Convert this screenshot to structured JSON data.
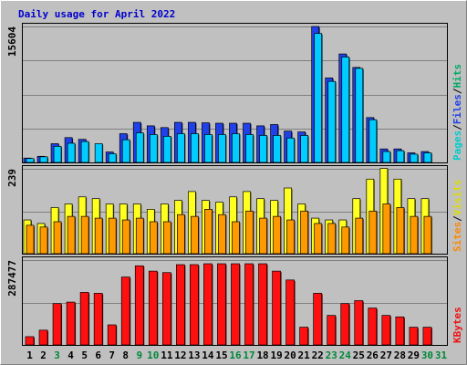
{
  "chart_data": {
    "type": "bar",
    "title": "Daily usage for April 2022",
    "categories": [
      "1",
      "2",
      "3",
      "4",
      "5",
      "6",
      "7",
      "8",
      "9",
      "10",
      "11",
      "12",
      "13",
      "14",
      "15",
      "16",
      "17",
      "18",
      "19",
      "20",
      "21",
      "22",
      "23",
      "24",
      "25",
      "26",
      "27",
      "28",
      "29",
      "30",
      "31"
    ],
    "weekend_days": [
      "3",
      "9",
      "10",
      "16",
      "17",
      "23",
      "24",
      "30",
      "31"
    ],
    "panels": [
      {
        "id": "top",
        "max_label": "15604",
        "ylim": [
          0,
          15604
        ],
        "series": [
          {
            "name": "Hits",
            "color": "#2040e8",
            "values": [
              500,
              700,
              2150,
              2850,
              2650,
              0,
              1200,
              3300,
              4600,
              4200,
              4000,
              4600,
              4600,
              4550,
              4500,
              4500,
              4500,
              4200,
              4350,
              3600,
              3500,
              15600,
              9700,
              12450,
              10900,
              5150,
              1550,
              1550,
              1100,
              1250,
              0
            ]
          },
          {
            "name": "Files",
            "color": "#00ccff",
            "values": [
              450,
              650,
              1850,
              2200,
              2400,
              2150,
              1000,
              2600,
              3400,
              3200,
              3000,
              3300,
              3300,
              3200,
              3200,
              3300,
              3200,
              3100,
              3100,
              2800,
              3100,
              14800,
              9300,
              12100,
              10800,
              4900,
              1250,
              1350,
              950,
              1100,
              0
            ]
          },
          {
            "name": "Pages",
            "color": "#00ccff",
            "values": []
          }
        ],
        "legend": [
          {
            "text": "Pages",
            "color": "#00cccc"
          },
          {
            "text": "Files",
            "color": "#2040e8"
          },
          {
            "text": "Hits",
            "color": "#00aa66"
          }
        ]
      },
      {
        "id": "middle",
        "max_label": "239",
        "ylim": [
          0,
          239
        ],
        "series": [
          {
            "name": "Visits",
            "color": "#ffff20",
            "values": [
              95,
              85,
              130,
              140,
              160,
              155,
              140,
              140,
              140,
              125,
              140,
              150,
              175,
              150,
              145,
              160,
              175,
              155,
              150,
              185,
              140,
              100,
              95,
              95,
              155,
              210,
              240,
              210,
              155,
              155,
              0
            ]
          },
          {
            "name": "Sites",
            "color": "#ff9900",
            "values": [
              80,
              75,
              90,
              105,
              105,
              100,
              100,
              95,
              100,
              90,
              90,
              110,
              105,
              125,
              110,
              90,
              120,
              100,
              105,
              95,
              120,
              85,
              85,
              75,
              100,
              120,
              140,
              130,
              105,
              105,
              0
            ]
          }
        ],
        "legend": [
          {
            "text": "Sites",
            "color": "#ff8800"
          },
          {
            "text": "Visits",
            "color": "#dddd00"
          }
        ]
      },
      {
        "id": "bottom",
        "max_label": "287477",
        "ylim": [
          0,
          287477
        ],
        "series": [
          {
            "name": "KBytes",
            "color": "#ff1010",
            "values": [
              28000,
              50000,
              140000,
              145000,
              178000,
              175000,
              68000,
              230000,
              268000,
              250000,
              245000,
              272000,
              272000,
              275000,
              275000,
              275000,
              275000,
              275000,
              250000,
              220000,
              60000,
              175000,
              100000,
              140000,
              150000,
              125000,
              100000,
              95000,
              60000,
              60000,
              0
            ]
          }
        ],
        "legend": [
          {
            "text": "KBytes",
            "color": "#ee1111"
          }
        ]
      }
    ]
  }
}
